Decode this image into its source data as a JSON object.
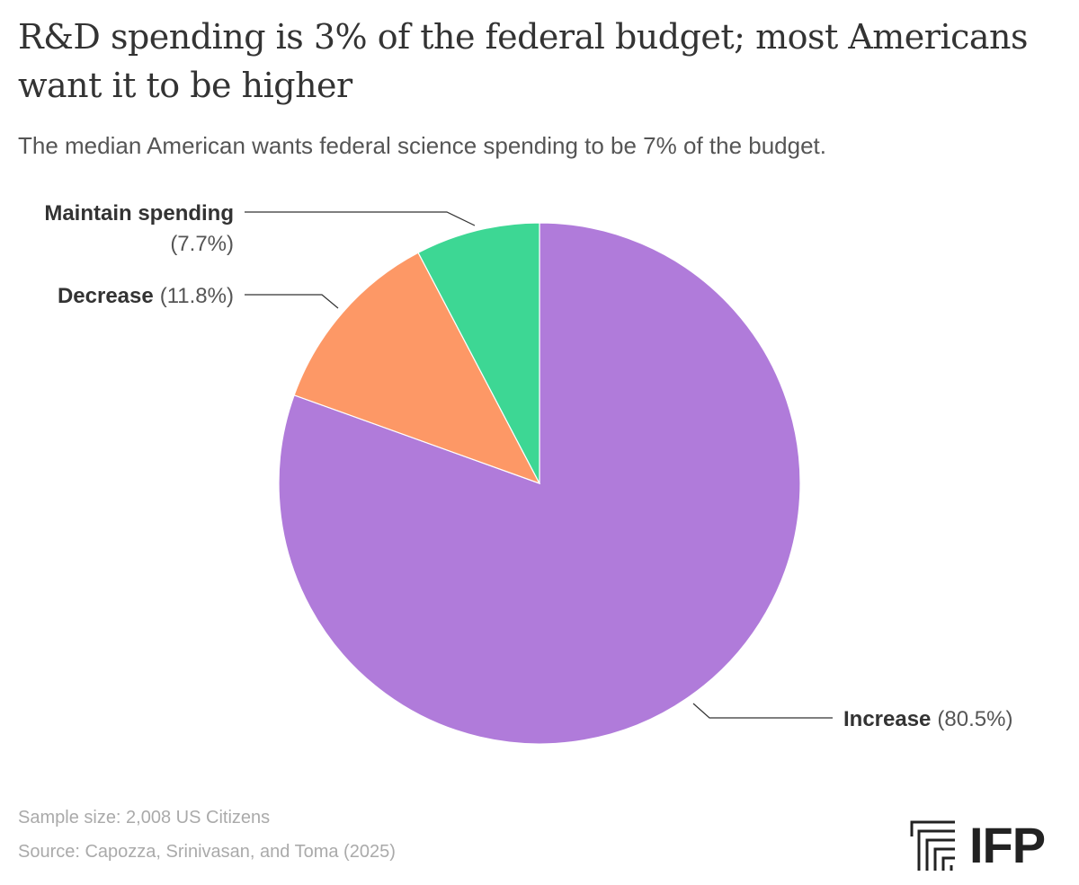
{
  "header": {
    "title": "R&D spending is 3% of the federal budget; most Americans want it to be higher",
    "subtitle": "The median American wants federal science spending to be 7% of the budget."
  },
  "chart_data": {
    "type": "pie",
    "title": "R&D spending is 3% of the federal budget; most Americans want it to be higher",
    "subtitle": "The median American wants federal science spending to be 7% of the budget.",
    "slices": [
      {
        "label": "Increase",
        "value": 80.5,
        "value_label": "(80.5%)",
        "color": "#b07bda"
      },
      {
        "label": "Decrease",
        "value": 11.8,
        "value_label": "(11.8%)",
        "color": "#fd9866"
      },
      {
        "label": "Maintain spending",
        "value": 7.7,
        "value_label": "(7.7%)",
        "color": "#3dd794"
      }
    ],
    "start_angle": "12 o'clock, clockwise",
    "legend": "none (direct labels with leader lines)"
  },
  "footer": {
    "sample": "Sample size: 2,008 US Citizens",
    "source": "Source: Capozza, Srinivasan, and Toma (2025)",
    "logo_text": "IFP",
    "logo_icon": "ifp-logo-icon"
  }
}
